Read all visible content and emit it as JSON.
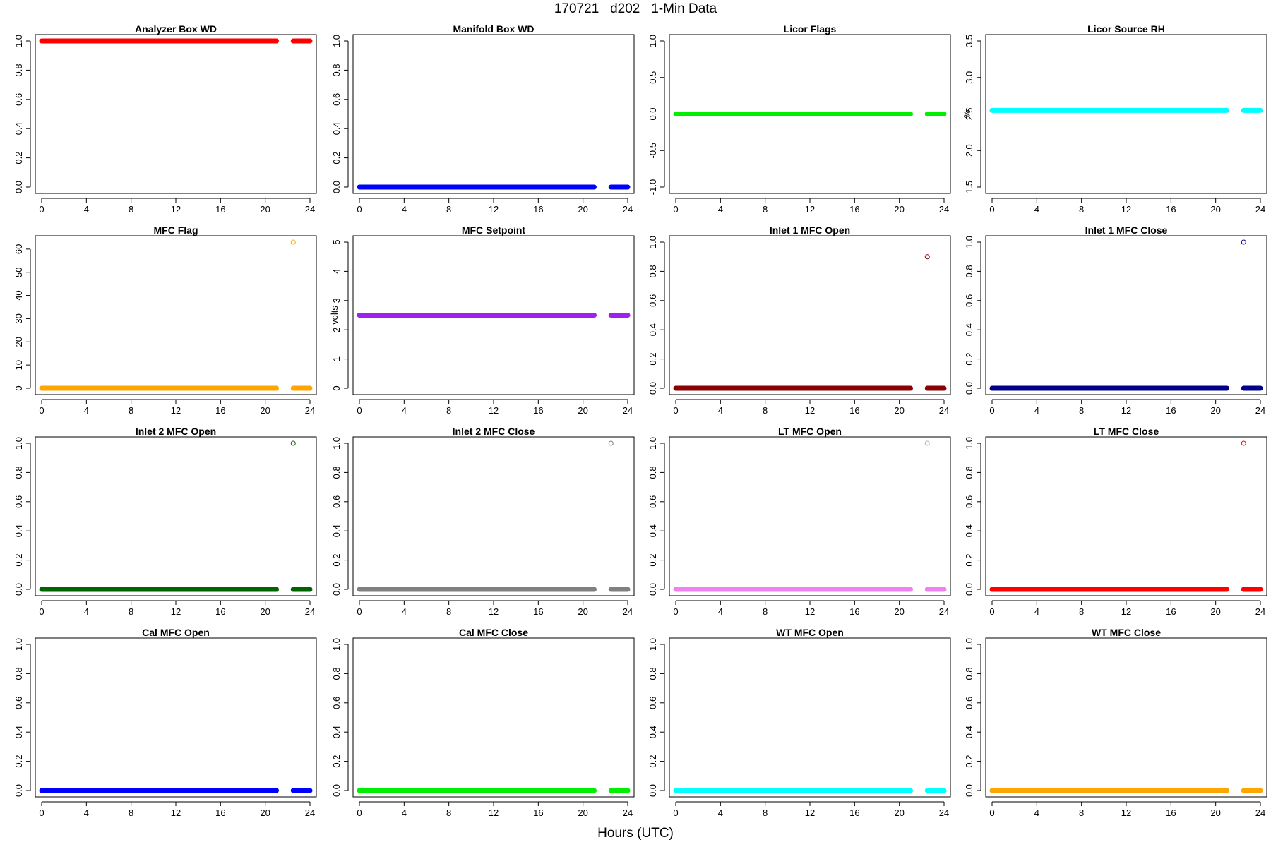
{
  "page": {
    "title": "170721   d202   1-Min Data",
    "xlabel": "Hours (UTC)"
  },
  "chart_data": [
    {
      "type": "scatter",
      "title": "Analyzer Box WD",
      "ylabel": "",
      "color": "#ff0000",
      "xlim": [
        0,
        24
      ],
      "xticks": [
        "0",
        "4",
        "8",
        "12",
        "16",
        "20",
        "24"
      ],
      "ylim": [
        0,
        1
      ],
      "yticks": [
        "0.0",
        "0.2",
        "0.4",
        "0.6",
        "0.8",
        "1.0"
      ],
      "baseline": 1.0,
      "segments": [
        [
          0,
          21
        ],
        [
          22.5,
          24
        ]
      ],
      "outliers": []
    },
    {
      "type": "scatter",
      "title": "Manifold Box WD",
      "ylabel": "",
      "color": "#0000ff",
      "xlim": [
        0,
        24
      ],
      "xticks": [
        "0",
        "4",
        "8",
        "12",
        "16",
        "20",
        "24"
      ],
      "ylim": [
        0,
        1
      ],
      "yticks": [
        "0.0",
        "0.2",
        "0.4",
        "0.6",
        "0.8",
        "1.0"
      ],
      "baseline": 0.0,
      "segments": [
        [
          0,
          21
        ],
        [
          22.5,
          24
        ]
      ],
      "outliers": []
    },
    {
      "type": "scatter",
      "title": "Licor Flags",
      "ylabel": "",
      "color": "#00ee00",
      "xlim": [
        0,
        24
      ],
      "xticks": [
        "0",
        "4",
        "8",
        "12",
        "16",
        "20",
        "24"
      ],
      "ylim": [
        -1,
        1
      ],
      "yticks": [
        "-1.0",
        "-0.5",
        "0.0",
        "0.5",
        "1.0"
      ],
      "baseline": 0.0,
      "segments": [
        [
          0,
          21
        ],
        [
          22.5,
          24
        ]
      ],
      "outliers": []
    },
    {
      "type": "scatter",
      "title": "Licor Source RH",
      "ylabel": "%",
      "color": "#00ffff",
      "xlim": [
        0,
        24
      ],
      "xticks": [
        "0",
        "4",
        "8",
        "12",
        "16",
        "20",
        "24"
      ],
      "ylim": [
        1.5,
        3.5
      ],
      "yticks": [
        "1.5",
        "2.0",
        "2.5",
        "3.0",
        "3.5"
      ],
      "baseline": 2.55,
      "segments": [
        [
          0,
          21
        ],
        [
          22.5,
          24
        ]
      ],
      "outliers": []
    },
    {
      "type": "scatter",
      "title": "MFC Flag",
      "ylabel": "",
      "color": "#ffa500",
      "xlim": [
        0,
        24
      ],
      "xticks": [
        "0",
        "4",
        "8",
        "12",
        "16",
        "20",
        "24"
      ],
      "ylim": [
        0,
        63
      ],
      "yticks": [
        "0",
        "10",
        "20",
        "30",
        "40",
        "50",
        "60"
      ],
      "baseline": 0,
      "segments": [
        [
          0,
          21
        ],
        [
          22.5,
          24
        ]
      ],
      "outliers": [
        [
          22.5,
          63
        ]
      ]
    },
    {
      "type": "scatter",
      "title": "MFC Setpoint",
      "ylabel": "volts",
      "color": "#a020f0",
      "xlim": [
        0,
        24
      ],
      "xticks": [
        "0",
        "4",
        "8",
        "12",
        "16",
        "20",
        "24"
      ],
      "ylim": [
        0,
        5
      ],
      "yticks": [
        "0",
        "1",
        "2",
        "3",
        "4",
        "5"
      ],
      "baseline": 2.5,
      "segments": [
        [
          0,
          21
        ],
        [
          22.5,
          24
        ]
      ],
      "outliers": []
    },
    {
      "type": "scatter",
      "title": "Inlet 1 MFC Open",
      "ylabel": "",
      "color": "#8b0000",
      "xlim": [
        0,
        24
      ],
      "xticks": [
        "0",
        "4",
        "8",
        "12",
        "16",
        "20",
        "24"
      ],
      "ylim": [
        0,
        1
      ],
      "yticks": [
        "0.0",
        "0.2",
        "0.4",
        "0.6",
        "0.8",
        "1.0"
      ],
      "baseline": 0.0,
      "segments": [
        [
          0,
          21
        ],
        [
          22.5,
          24
        ]
      ],
      "outliers": [
        [
          22.5,
          0.9
        ]
      ]
    },
    {
      "type": "scatter",
      "title": "Inlet 1 MFC Close",
      "ylabel": "",
      "color": "#00008b",
      "xlim": [
        0,
        24
      ],
      "xticks": [
        "0",
        "4",
        "8",
        "12",
        "16",
        "20",
        "24"
      ],
      "ylim": [
        0,
        1
      ],
      "yticks": [
        "0.0",
        "0.2",
        "0.4",
        "0.6",
        "0.8",
        "1.0"
      ],
      "baseline": 0.0,
      "segments": [
        [
          0,
          21
        ],
        [
          22.5,
          24
        ]
      ],
      "outliers": [
        [
          22.5,
          1.0
        ]
      ]
    },
    {
      "type": "scatter",
      "title": "Inlet 2 MFC Open",
      "ylabel": "",
      "color": "#006400",
      "xlim": [
        0,
        24
      ],
      "xticks": [
        "0",
        "4",
        "8",
        "12",
        "16",
        "20",
        "24"
      ],
      "ylim": [
        0,
        1
      ],
      "yticks": [
        "0.0",
        "0.2",
        "0.4",
        "0.6",
        "0.8",
        "1.0"
      ],
      "baseline": 0.0,
      "segments": [
        [
          0,
          21
        ],
        [
          22.5,
          24
        ]
      ],
      "outliers": [
        [
          22.5,
          1.0
        ]
      ]
    },
    {
      "type": "scatter",
      "title": "Inlet 2 MFC Close",
      "ylabel": "",
      "color": "#808080",
      "xlim": [
        0,
        24
      ],
      "xticks": [
        "0",
        "4",
        "8",
        "12",
        "16",
        "20",
        "24"
      ],
      "ylim": [
        0,
        1
      ],
      "yticks": [
        "0.0",
        "0.2",
        "0.4",
        "0.6",
        "0.8",
        "1.0"
      ],
      "baseline": 0.0,
      "segments": [
        [
          0,
          21
        ],
        [
          22.5,
          24
        ]
      ],
      "outliers": [
        [
          22.5,
          1.0
        ]
      ]
    },
    {
      "type": "scatter",
      "title": "LT MFC Open",
      "ylabel": "",
      "color": "#ee82ee",
      "xlim": [
        0,
        24
      ],
      "xticks": [
        "0",
        "4",
        "8",
        "12",
        "16",
        "20",
        "24"
      ],
      "ylim": [
        0,
        1
      ],
      "yticks": [
        "0.0",
        "0.2",
        "0.4",
        "0.6",
        "0.8",
        "1.0"
      ],
      "baseline": 0.0,
      "segments": [
        [
          0,
          21
        ],
        [
          22.5,
          24
        ]
      ],
      "outliers": [
        [
          22.5,
          1.0
        ]
      ]
    },
    {
      "type": "scatter",
      "title": "LT MFC Close",
      "ylabel": "",
      "color": "#ff0000",
      "xlim": [
        0,
        24
      ],
      "xticks": [
        "0",
        "4",
        "8",
        "12",
        "16",
        "20",
        "24"
      ],
      "ylim": [
        0,
        1
      ],
      "yticks": [
        "0.0",
        "0.2",
        "0.4",
        "0.6",
        "0.8",
        "1.0"
      ],
      "baseline": 0.0,
      "segments": [
        [
          0,
          21
        ],
        [
          22.5,
          24
        ]
      ],
      "outliers": [
        [
          22.5,
          1.0
        ]
      ]
    },
    {
      "type": "scatter",
      "title": "Cal MFC Open",
      "ylabel": "",
      "color": "#0000ff",
      "xlim": [
        0,
        24
      ],
      "xticks": [
        "0",
        "4",
        "8",
        "12",
        "16",
        "20",
        "24"
      ],
      "ylim": [
        0,
        1
      ],
      "yticks": [
        "0.0",
        "0.2",
        "0.4",
        "0.6",
        "0.8",
        "1.0"
      ],
      "baseline": 0.0,
      "segments": [
        [
          0,
          21
        ],
        [
          22.5,
          24
        ]
      ],
      "outliers": []
    },
    {
      "type": "scatter",
      "title": "Cal MFC Close",
      "ylabel": "",
      "color": "#00ee00",
      "xlim": [
        0,
        24
      ],
      "xticks": [
        "0",
        "4",
        "8",
        "12",
        "16",
        "20",
        "24"
      ],
      "ylim": [
        0,
        1
      ],
      "yticks": [
        "0.0",
        "0.2",
        "0.4",
        "0.6",
        "0.8",
        "1.0"
      ],
      "baseline": 0.0,
      "segments": [
        [
          0,
          21
        ],
        [
          22.5,
          24
        ]
      ],
      "outliers": []
    },
    {
      "type": "scatter",
      "title": "WT MFC Open",
      "ylabel": "",
      "color": "#00ffff",
      "xlim": [
        0,
        24
      ],
      "xticks": [
        "0",
        "4",
        "8",
        "12",
        "16",
        "20",
        "24"
      ],
      "ylim": [
        0,
        1
      ],
      "yticks": [
        "0.0",
        "0.2",
        "0.4",
        "0.6",
        "0.8",
        "1.0"
      ],
      "baseline": 0.0,
      "segments": [
        [
          0,
          21
        ],
        [
          22.5,
          24
        ]
      ],
      "outliers": []
    },
    {
      "type": "scatter",
      "title": "WT MFC Close",
      "ylabel": "",
      "color": "#ffa500",
      "xlim": [
        0,
        24
      ],
      "xticks": [
        "0",
        "4",
        "8",
        "12",
        "16",
        "20",
        "24"
      ],
      "ylim": [
        0,
        1
      ],
      "yticks": [
        "0.0",
        "0.2",
        "0.4",
        "0.6",
        "0.8",
        "1.0"
      ],
      "baseline": 0.0,
      "segments": [
        [
          0,
          21
        ],
        [
          22.5,
          24
        ]
      ],
      "outliers": []
    }
  ]
}
